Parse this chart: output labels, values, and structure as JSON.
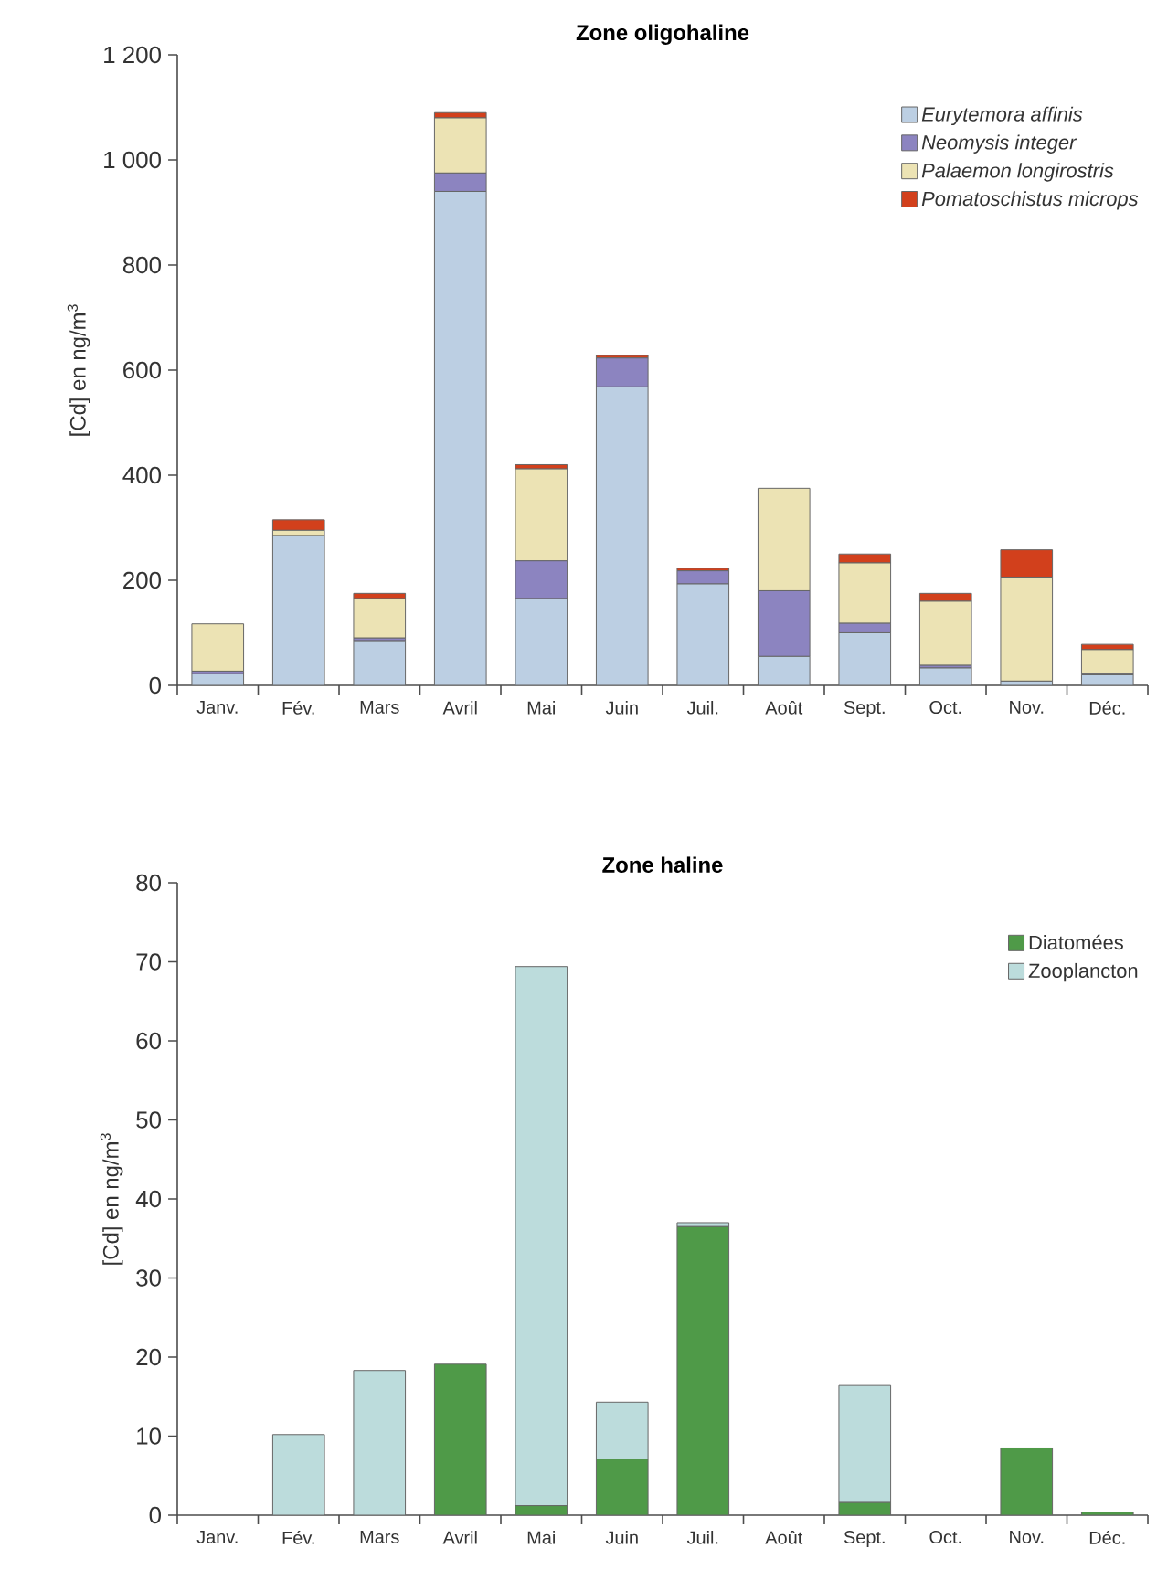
{
  "chart_data": [
    {
      "type": "bar",
      "title": "Zone oligohaline",
      "ylabel": "[Cd] en ng/m$^{3}$",
      "stacked": true,
      "legend": "top right",
      "categories": [
        "Janv.",
        "Fév.",
        "Mars",
        "Avril",
        "Mai",
        "Juin",
        "Juil.",
        "Août",
        "Sept.",
        "Oct.",
        "Nov.",
        "Déc."
      ],
      "ylim": [
        0,
        1200
      ],
      "yticks": [
        0,
        200,
        400,
        600,
        800,
        {
          "value": 1000,
          "label": "1 000"
        },
        {
          "value": 1200,
          "label": "1 200"
        }
      ],
      "series": [
        {
          "name": "*Eurytemora affinis*",
          "color": "#bccfe3",
          "values": [
            22,
            285,
            85,
            940,
            165,
            568,
            193,
            55,
            100,
            33,
            8,
            20
          ]
        },
        {
          "name": "*Neomysis integer*",
          "color": "#8c84c0",
          "values": [
            5,
            0,
            5,
            35,
            72,
            55,
            25,
            125,
            18,
            5,
            null,
            3
          ]
        },
        {
          "name": "*Palaemon longirostris*",
          "color": "#ece3b4",
          "values": [
            90,
            10,
            75,
            105,
            175,
            0,
            0,
            195,
            115,
            122,
            198,
            45
          ]
        },
        {
          "name": "*Pomatoschistus microps*",
          "color": "#d2401c",
          "values": [
            0,
            20,
            10,
            10,
            8,
            5,
            5,
            0,
            17,
            15,
            52,
            10
          ]
        }
      ]
    },
    {
      "type": "bar",
      "title": "Zone haline",
      "ylabel": "[Cd] en ng/m$^{3}$",
      "stacked": true,
      "legend": "top right",
      "categories": [
        "Janv.",
        "Fév.",
        "Mars",
        "Avril",
        "Mai",
        "Juin",
        "Juil.",
        "Août",
        "Sept.",
        "Oct.",
        "Nov.",
        "Déc."
      ],
      "ylim": [
        0,
        80
      ],
      "yticks": [
        0,
        10,
        20,
        30,
        40,
        50,
        60,
        70,
        80
      ],
      "series": [
        {
          "name": "Diatomées",
          "color": "#4f9a48",
          "values": [
            0,
            0,
            0,
            19.1,
            1.2,
            7.1,
            36.5,
            0,
            1.6,
            0,
            8.5,
            0.4
          ]
        },
        {
          "name": "Zooplancton",
          "color": "#bcdcdc",
          "values": [
            0,
            10.2,
            18.3,
            0,
            68.2,
            7.2,
            0.5,
            0,
            14.8,
            0,
            0,
            0
          ]
        }
      ]
    }
  ]
}
